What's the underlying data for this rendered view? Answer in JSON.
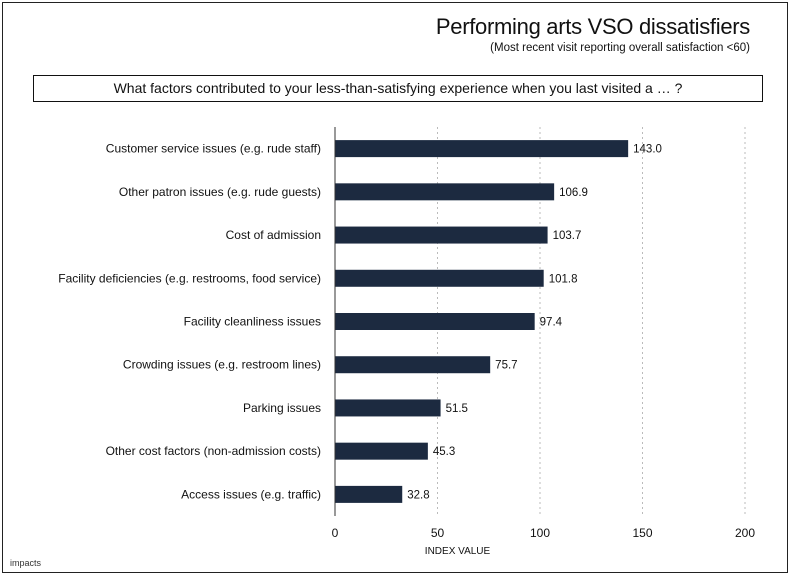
{
  "title": "Performing arts VSO dissatisfiers",
  "subtitle": "(Most recent visit reporting overall satisfaction <60)",
  "question": "What factors contributed to your less-than-satisfying experience when you last visited a … ?",
  "logo": "impacts",
  "colors": {
    "bar": "#1c2a40",
    "grid": "#bbbbbb",
    "axis": "#333333"
  },
  "chart_data": {
    "type": "bar",
    "orientation": "horizontal",
    "categories": [
      "Customer service issues (e.g. rude staff)",
      "Other patron issues (e.g. rude guests)",
      "Cost of admission",
      "Facility deficiencies (e.g. restrooms, food service)",
      "Facility cleanliness issues",
      "Crowding issues (e.g. restroom lines)",
      "Parking issues",
      "Other cost factors (non-admission costs)",
      "Access issues (e.g. traffic)"
    ],
    "values": [
      143.0,
      106.9,
      103.7,
      101.8,
      97.4,
      75.7,
      51.5,
      45.3,
      32.8
    ],
    "value_labels": [
      "143.0",
      "106.9",
      "103.7",
      "101.8",
      "97.4",
      "75.7",
      "51.5",
      "45.3",
      "32.8"
    ],
    "xlabel": "INDEX VALUE",
    "xlim": [
      0,
      200
    ],
    "xticks": [
      0,
      50,
      100,
      150,
      200
    ],
    "grid": "vertical dashed"
  }
}
